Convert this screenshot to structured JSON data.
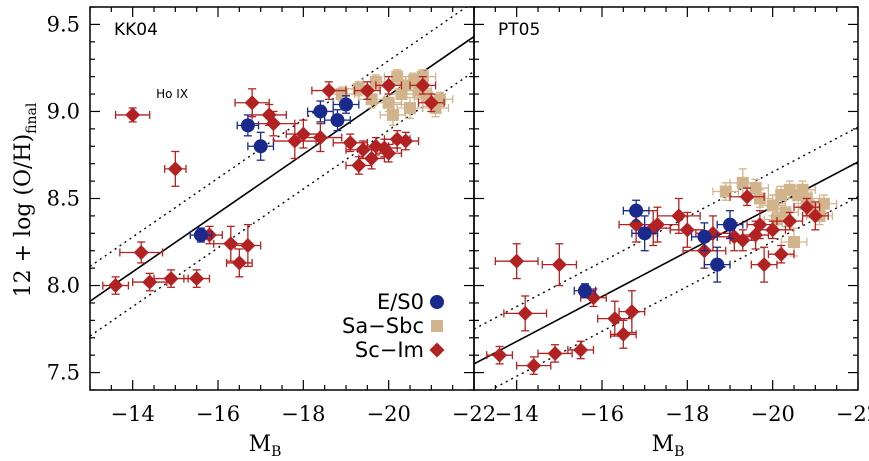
{
  "chart_data": {
    "type": "scatter",
    "y_axis_label_main": "12 + log (O/H)",
    "y_axis_label_sub": "final",
    "x_axis_label_main": "M",
    "x_axis_label_sub": "B",
    "xlim": [
      -13,
      -22
    ],
    "ylim": [
      7.4,
      9.6
    ],
    "x_ticks": [
      -14,
      -16,
      -18,
      -20,
      -22
    ],
    "y_ticks": [
      7.5,
      8.0,
      8.5,
      9.0,
      9.5
    ],
    "x_tick_labels": [
      "−14",
      "−16",
      "−18",
      "−20",
      "−22"
    ],
    "y_tick_labels": [
      "7.5",
      "8.0",
      "8.5",
      "9.0",
      "9.5"
    ],
    "colors": {
      "E/S0": "#1a2a8c",
      "Sa-Sbc": "#d2b48c",
      "Sc-Im": "#b22222"
    },
    "legend": [
      {
        "name": "E/S0",
        "marker": "circle"
      },
      {
        "name": "Sa−Sbc",
        "marker": "square"
      },
      {
        "name": "Sc−Im",
        "marker": "diamond"
      }
    ],
    "panels": [
      {
        "label": "KK04",
        "annotation": {
          "text": "Ho IX",
          "x": -14.55,
          "y": 9.1
        },
        "fit": {
          "x": [
            -13.0,
            -22.0
          ],
          "y": [
            7.91,
            9.43
          ]
        },
        "fit_upper": {
          "x": [
            -13.0,
            -22.0
          ],
          "y": [
            8.11,
            9.63
          ]
        },
        "fit_lower": {
          "x": [
            -13.0,
            -22.0
          ],
          "y": [
            7.71,
            9.23
          ]
        },
        "series": [
          {
            "name": "E/S0",
            "points": [
              {
                "x": -15.6,
                "y": 8.29,
                "ex": 0.25,
                "ey": 0.04
              },
              {
                "x": -16.7,
                "y": 8.92,
                "ex": 0.25,
                "ey": 0.06
              },
              {
                "x": -17.0,
                "y": 8.8,
                "ex": 0.3,
                "ey": 0.08
              },
              {
                "x": -18.4,
                "y": 9.0,
                "ex": 0.3,
                "ey": 0.06
              },
              {
                "x": -18.8,
                "y": 8.95,
                "ex": 0.3,
                "ey": 0.06
              },
              {
                "x": -19.0,
                "y": 9.04,
                "ex": 0.3,
                "ey": 0.05
              }
            ]
          },
          {
            "name": "Sa-Sbc",
            "points": [
              {
                "x": -18.9,
                "y": 9.1,
                "ex": 0.3,
                "ey": 0.04
              },
              {
                "x": -19.3,
                "y": 9.13,
                "ex": 0.3,
                "ey": 0.04
              },
              {
                "x": -19.7,
                "y": 9.17,
                "ex": 0.3,
                "ey": 0.04
              },
              {
                "x": -20.0,
                "y": 9.05,
                "ex": 0.3,
                "ey": 0.05
              },
              {
                "x": -20.2,
                "y": 9.2,
                "ex": 0.3,
                "ey": 0.04
              },
              {
                "x": -20.3,
                "y": 9.1,
                "ex": 0.3,
                "ey": 0.06
              },
              {
                "x": -20.4,
                "y": 9.15,
                "ex": 0.3,
                "ey": 0.05
              },
              {
                "x": -20.5,
                "y": 9.02,
                "ex": 0.3,
                "ey": 0.06
              },
              {
                "x": -20.6,
                "y": 9.18,
                "ex": 0.3,
                "ey": 0.04
              },
              {
                "x": -20.7,
                "y": 9.12,
                "ex": 0.3,
                "ey": 0.05
              },
              {
                "x": -20.8,
                "y": 9.2,
                "ex": 0.3,
                "ey": 0.04
              },
              {
                "x": -20.9,
                "y": 9.08,
                "ex": 0.3,
                "ey": 0.05
              },
              {
                "x": -21.1,
                "y": 9.02,
                "ex": 0.3,
                "ey": 0.05
              },
              {
                "x": -21.2,
                "y": 9.07,
                "ex": 0.3,
                "ey": 0.04
              },
              {
                "x": -19.6,
                "y": 9.07,
                "ex": 0.3,
                "ey": 0.05
              },
              {
                "x": -20.1,
                "y": 8.98,
                "ex": 0.3,
                "ey": 0.06
              }
            ]
          },
          {
            "name": "Sc-Im",
            "points": [
              {
                "x": -13.6,
                "y": 8.0,
                "ex": 0.3,
                "ey": 0.05
              },
              {
                "x": -14.0,
                "y": 8.98,
                "ex": 0.4,
                "ey": 0.04
              },
              {
                "x": -14.2,
                "y": 8.19,
                "ex": 0.5,
                "ey": 0.06
              },
              {
                "x": -14.4,
                "y": 8.02,
                "ex": 0.4,
                "ey": 0.05
              },
              {
                "x": -14.9,
                "y": 8.04,
                "ex": 0.4,
                "ey": 0.05
              },
              {
                "x": -15.0,
                "y": 8.67,
                "ex": 0.25,
                "ey": 0.1
              },
              {
                "x": -15.5,
                "y": 8.04,
                "ex": 0.3,
                "ey": 0.05
              },
              {
                "x": -15.8,
                "y": 8.29,
                "ex": 0.3,
                "ey": 0.05
              },
              {
                "x": -16.3,
                "y": 8.24,
                "ex": 0.4,
                "ey": 0.1
              },
              {
                "x": -16.5,
                "y": 8.13,
                "ex": 0.3,
                "ey": 0.08
              },
              {
                "x": -16.7,
                "y": 8.23,
                "ex": 0.3,
                "ey": 0.12
              },
              {
                "x": -16.8,
                "y": 9.05,
                "ex": 0.4,
                "ey": 0.08
              },
              {
                "x": -17.2,
                "y": 8.98,
                "ex": 0.4,
                "ey": 0.06
              },
              {
                "x": -17.3,
                "y": 8.93,
                "ex": 0.5,
                "ey": 0.07
              },
              {
                "x": -17.8,
                "y": 8.83,
                "ex": 0.5,
                "ey": 0.1
              },
              {
                "x": -18.0,
                "y": 8.87,
                "ex": 0.4,
                "ey": 0.08
              },
              {
                "x": -18.4,
                "y": 8.85,
                "ex": 0.5,
                "ey": 0.08
              },
              {
                "x": -18.6,
                "y": 9.12,
                "ex": 0.4,
                "ey": 0.05
              },
              {
                "x": -19.1,
                "y": 8.82,
                "ex": 0.4,
                "ey": 0.05
              },
              {
                "x": -19.3,
                "y": 8.69,
                "ex": 0.3,
                "ey": 0.05
              },
              {
                "x": -19.4,
                "y": 8.78,
                "ex": 0.4,
                "ey": 0.05
              },
              {
                "x": -19.6,
                "y": 8.73,
                "ex": 0.3,
                "ey": 0.06
              },
              {
                "x": -19.7,
                "y": 8.8,
                "ex": 0.3,
                "ey": 0.05
              },
              {
                "x": -19.9,
                "y": 8.79,
                "ex": 0.3,
                "ey": 0.05
              },
              {
                "x": -20.0,
                "y": 8.76,
                "ex": 0.3,
                "ey": 0.05
              },
              {
                "x": -20.2,
                "y": 8.84,
                "ex": 0.3,
                "ey": 0.05
              },
              {
                "x": -20.4,
                "y": 8.83,
                "ex": 0.3,
                "ey": 0.05
              },
              {
                "x": -19.5,
                "y": 9.12,
                "ex": 0.3,
                "ey": 0.05
              },
              {
                "x": -20.0,
                "y": 9.15,
                "ex": 0.3,
                "ey": 0.05
              },
              {
                "x": -20.8,
                "y": 9.15,
                "ex": 0.3,
                "ey": 0.05
              },
              {
                "x": -21.0,
                "y": 9.05,
                "ex": 0.3,
                "ey": 0.05
              }
            ]
          }
        ]
      },
      {
        "label": "PT05",
        "fit": {
          "x": [
            -13.0,
            -22.0
          ],
          "y": [
            7.55,
            8.71
          ]
        },
        "fit_upper": {
          "x": [
            -13.0,
            -22.0
          ],
          "y": [
            7.75,
            8.91
          ]
        },
        "fit_lower": {
          "x": [
            -13.0,
            -22.0
          ],
          "y": [
            7.35,
            8.51
          ]
        },
        "series": [
          {
            "name": "E/S0",
            "points": [
              {
                "x": -15.6,
                "y": 7.97,
                "ex": 0.25,
                "ey": 0.04
              },
              {
                "x": -16.8,
                "y": 8.43,
                "ex": 0.3,
                "ey": 0.06
              },
              {
                "x": -17.0,
                "y": 8.3,
                "ex": 0.3,
                "ey": 0.1
              },
              {
                "x": -18.4,
                "y": 8.28,
                "ex": 0.3,
                "ey": 0.08
              },
              {
                "x": -18.7,
                "y": 8.12,
                "ex": 0.3,
                "ey": 0.1
              },
              {
                "x": -19.0,
                "y": 8.35,
                "ex": 0.3,
                "ey": 0.08
              }
            ]
          },
          {
            "name": "Sa-Sbc",
            "points": [
              {
                "x": -18.9,
                "y": 8.54,
                "ex": 0.3,
                "ey": 0.05
              },
              {
                "x": -19.3,
                "y": 8.59,
                "ex": 0.3,
                "ey": 0.08
              },
              {
                "x": -19.7,
                "y": 8.5,
                "ex": 0.3,
                "ey": 0.05
              },
              {
                "x": -20.0,
                "y": 8.46,
                "ex": 0.3,
                "ey": 0.06
              },
              {
                "x": -20.2,
                "y": 8.52,
                "ex": 0.3,
                "ey": 0.05
              },
              {
                "x": -20.3,
                "y": 8.42,
                "ex": 0.3,
                "ey": 0.08
              },
              {
                "x": -20.4,
                "y": 8.55,
                "ex": 0.3,
                "ey": 0.05
              },
              {
                "x": -20.5,
                "y": 8.25,
                "ex": 0.3,
                "ey": 0.08
              },
              {
                "x": -20.6,
                "y": 8.52,
                "ex": 0.3,
                "ey": 0.05
              },
              {
                "x": -20.7,
                "y": 8.55,
                "ex": 0.3,
                "ey": 0.05
              },
              {
                "x": -20.8,
                "y": 8.5,
                "ex": 0.3,
                "ey": 0.05
              },
              {
                "x": -20.9,
                "y": 8.44,
                "ex": 0.3,
                "ey": 0.05
              },
              {
                "x": -21.1,
                "y": 8.4,
                "ex": 0.3,
                "ey": 0.05
              },
              {
                "x": -21.2,
                "y": 8.47,
                "ex": 0.3,
                "ey": 0.05
              },
              {
                "x": -19.6,
                "y": 8.56,
                "ex": 0.3,
                "ey": 0.05
              },
              {
                "x": -20.1,
                "y": 8.38,
                "ex": 0.3,
                "ey": 0.06
              }
            ]
          },
          {
            "name": "Sc-Im",
            "points": [
              {
                "x": -13.6,
                "y": 7.6,
                "ex": 0.3,
                "ey": 0.05
              },
              {
                "x": -14.0,
                "y": 8.14,
                "ex": 0.5,
                "ey": 0.1
              },
              {
                "x": -14.2,
                "y": 7.84,
                "ex": 0.5,
                "ey": 0.1
              },
              {
                "x": -14.4,
                "y": 7.54,
                "ex": 0.4,
                "ey": 0.05
              },
              {
                "x": -14.9,
                "y": 7.61,
                "ex": 0.4,
                "ey": 0.05
              },
              {
                "x": -15.0,
                "y": 8.12,
                "ex": 0.4,
                "ey": 0.12
              },
              {
                "x": -15.5,
                "y": 7.63,
                "ex": 0.3,
                "ey": 0.05
              },
              {
                "x": -15.8,
                "y": 7.93,
                "ex": 0.3,
                "ey": 0.05
              },
              {
                "x": -16.3,
                "y": 7.81,
                "ex": 0.4,
                "ey": 0.1
              },
              {
                "x": -16.5,
                "y": 7.72,
                "ex": 0.3,
                "ey": 0.08
              },
              {
                "x": -16.7,
                "y": 7.85,
                "ex": 0.3,
                "ey": 0.12
              },
              {
                "x": -16.8,
                "y": 8.35,
                "ex": 0.4,
                "ey": 0.1
              },
              {
                "x": -17.2,
                "y": 8.33,
                "ex": 0.4,
                "ey": 0.1
              },
              {
                "x": -17.3,
                "y": 8.35,
                "ex": 0.5,
                "ey": 0.1
              },
              {
                "x": -17.8,
                "y": 8.4,
                "ex": 0.5,
                "ey": 0.1
              },
              {
                "x": -18.0,
                "y": 8.32,
                "ex": 0.4,
                "ey": 0.1
              },
              {
                "x": -18.4,
                "y": 8.2,
                "ex": 0.5,
                "ey": 0.1
              },
              {
                "x": -18.6,
                "y": 8.3,
                "ex": 0.4,
                "ey": 0.1
              },
              {
                "x": -19.1,
                "y": 8.28,
                "ex": 0.4,
                "ey": 0.08
              },
              {
                "x": -19.3,
                "y": 8.26,
                "ex": 0.3,
                "ey": 0.06
              },
              {
                "x": -19.4,
                "y": 8.51,
                "ex": 0.4,
                "ey": 0.05
              },
              {
                "x": -19.6,
                "y": 8.29,
                "ex": 0.3,
                "ey": 0.08
              },
              {
                "x": -19.7,
                "y": 8.35,
                "ex": 0.3,
                "ey": 0.08
              },
              {
                "x": -19.8,
                "y": 8.12,
                "ex": 0.3,
                "ey": 0.1
              },
              {
                "x": -20.0,
                "y": 8.32,
                "ex": 0.3,
                "ey": 0.05
              },
              {
                "x": -20.2,
                "y": 8.18,
                "ex": 0.3,
                "ey": 0.05
              },
              {
                "x": -20.4,
                "y": 8.37,
                "ex": 0.3,
                "ey": 0.05
              },
              {
                "x": -20.8,
                "y": 8.45,
                "ex": 0.3,
                "ey": 0.05
              },
              {
                "x": -21.0,
                "y": 8.4,
                "ex": 0.3,
                "ey": 0.08
              }
            ]
          }
        ]
      }
    ]
  }
}
